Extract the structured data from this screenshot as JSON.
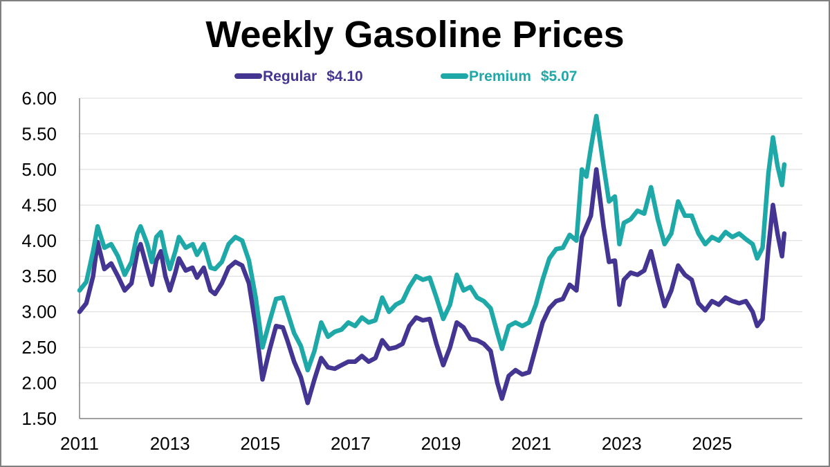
{
  "chart_data": {
    "type": "line",
    "title": "Weekly Gasoline Prices",
    "xlabel": "",
    "ylabel": "",
    "ylim": [
      1.5,
      6.0
    ],
    "xlim": [
      2011.0,
      2027.0
    ],
    "grid": true,
    "legend_position": "top-center",
    "y_ticks": [
      "6.00",
      "5.50",
      "5.00",
      "4.50",
      "4.00",
      "3.50",
      "3.00",
      "2.50",
      "2.00",
      "1.50"
    ],
    "x_ticks": [
      "2011",
      "2013",
      "2015",
      "2017",
      "2019",
      "2021",
      "2023",
      "2025"
    ],
    "series": [
      {
        "name": "Regular",
        "legend_value": "$4.10",
        "color": "#433591",
        "points": [
          [
            2011.0,
            3.0
          ],
          [
            2011.15,
            3.12
          ],
          [
            2011.3,
            3.5
          ],
          [
            2011.4,
            3.98
          ],
          [
            2011.55,
            3.6
          ],
          [
            2011.7,
            3.68
          ],
          [
            2011.85,
            3.5
          ],
          [
            2012.0,
            3.3
          ],
          [
            2012.15,
            3.4
          ],
          [
            2012.28,
            3.85
          ],
          [
            2012.35,
            3.95
          ],
          [
            2012.5,
            3.6
          ],
          [
            2012.6,
            3.38
          ],
          [
            2012.7,
            3.72
          ],
          [
            2012.8,
            3.85
          ],
          [
            2012.9,
            3.5
          ],
          [
            2013.0,
            3.3
          ],
          [
            2013.12,
            3.55
          ],
          [
            2013.2,
            3.75
          ],
          [
            2013.35,
            3.58
          ],
          [
            2013.5,
            3.62
          ],
          [
            2013.6,
            3.48
          ],
          [
            2013.75,
            3.62
          ],
          [
            2013.9,
            3.3
          ],
          [
            2014.0,
            3.25
          ],
          [
            2014.15,
            3.4
          ],
          [
            2014.3,
            3.62
          ],
          [
            2014.45,
            3.7
          ],
          [
            2014.6,
            3.65
          ],
          [
            2014.75,
            3.4
          ],
          [
            2014.9,
            2.8
          ],
          [
            2015.05,
            2.05
          ],
          [
            2015.2,
            2.45
          ],
          [
            2015.35,
            2.8
          ],
          [
            2015.5,
            2.78
          ],
          [
            2015.6,
            2.6
          ],
          [
            2015.75,
            2.3
          ],
          [
            2015.9,
            2.08
          ],
          [
            2016.05,
            1.72
          ],
          [
            2016.2,
            2.05
          ],
          [
            2016.35,
            2.35
          ],
          [
            2016.5,
            2.22
          ],
          [
            2016.65,
            2.2
          ],
          [
            2016.8,
            2.25
          ],
          [
            2016.95,
            2.3
          ],
          [
            2017.1,
            2.3
          ],
          [
            2017.25,
            2.38
          ],
          [
            2017.4,
            2.3
          ],
          [
            2017.55,
            2.35
          ],
          [
            2017.7,
            2.6
          ],
          [
            2017.85,
            2.48
          ],
          [
            2018.0,
            2.5
          ],
          [
            2018.15,
            2.55
          ],
          [
            2018.3,
            2.8
          ],
          [
            2018.45,
            2.92
          ],
          [
            2018.6,
            2.88
          ],
          [
            2018.75,
            2.9
          ],
          [
            2018.9,
            2.55
          ],
          [
            2019.05,
            2.25
          ],
          [
            2019.2,
            2.5
          ],
          [
            2019.35,
            2.85
          ],
          [
            2019.5,
            2.78
          ],
          [
            2019.65,
            2.62
          ],
          [
            2019.8,
            2.6
          ],
          [
            2019.95,
            2.55
          ],
          [
            2020.1,
            2.45
          ],
          [
            2020.25,
            2.0
          ],
          [
            2020.35,
            1.78
          ],
          [
            2020.5,
            2.1
          ],
          [
            2020.65,
            2.18
          ],
          [
            2020.8,
            2.12
          ],
          [
            2020.95,
            2.15
          ],
          [
            2021.1,
            2.5
          ],
          [
            2021.25,
            2.85
          ],
          [
            2021.4,
            3.05
          ],
          [
            2021.55,
            3.15
          ],
          [
            2021.7,
            3.18
          ],
          [
            2021.85,
            3.38
          ],
          [
            2022.0,
            3.3
          ],
          [
            2022.12,
            4.05
          ],
          [
            2022.22,
            4.2
          ],
          [
            2022.32,
            4.35
          ],
          [
            2022.44,
            5.0
          ],
          [
            2022.6,
            4.2
          ],
          [
            2022.72,
            3.7
          ],
          [
            2022.85,
            3.72
          ],
          [
            2022.95,
            3.1
          ],
          [
            2023.05,
            3.45
          ],
          [
            2023.2,
            3.55
          ],
          [
            2023.35,
            3.52
          ],
          [
            2023.5,
            3.58
          ],
          [
            2023.65,
            3.85
          ],
          [
            2023.8,
            3.45
          ],
          [
            2023.95,
            3.08
          ],
          [
            2024.1,
            3.3
          ],
          [
            2024.25,
            3.65
          ],
          [
            2024.4,
            3.52
          ],
          [
            2024.55,
            3.45
          ],
          [
            2024.7,
            3.12
          ],
          [
            2024.85,
            3.02
          ],
          [
            2025.0,
            3.15
          ],
          [
            2025.15,
            3.1
          ],
          [
            2025.3,
            3.2
          ],
          [
            2025.45,
            3.15
          ],
          [
            2025.6,
            3.12
          ],
          [
            2025.75,
            3.15
          ],
          [
            2025.9,
            3.0
          ],
          [
            2026.0,
            2.8
          ],
          [
            2026.12,
            2.9
          ],
          [
            2026.25,
            3.9
          ],
          [
            2026.35,
            4.5
          ],
          [
            2026.45,
            4.1
          ],
          [
            2026.55,
            3.78
          ],
          [
            2026.6,
            4.1
          ]
        ]
      },
      {
        "name": "Premium",
        "legend_value": "$5.07",
        "color": "#1EA8A8",
        "points": [
          [
            2011.0,
            3.3
          ],
          [
            2011.15,
            3.42
          ],
          [
            2011.3,
            3.85
          ],
          [
            2011.4,
            4.2
          ],
          [
            2011.55,
            3.9
          ],
          [
            2011.7,
            3.95
          ],
          [
            2011.85,
            3.78
          ],
          [
            2012.0,
            3.52
          ],
          [
            2012.15,
            3.7
          ],
          [
            2012.28,
            4.1
          ],
          [
            2012.35,
            4.2
          ],
          [
            2012.5,
            3.95
          ],
          [
            2012.6,
            3.7
          ],
          [
            2012.7,
            4.05
          ],
          [
            2012.8,
            4.12
          ],
          [
            2012.9,
            3.82
          ],
          [
            2013.0,
            3.6
          ],
          [
            2013.12,
            3.85
          ],
          [
            2013.2,
            4.05
          ],
          [
            2013.35,
            3.9
          ],
          [
            2013.5,
            3.95
          ],
          [
            2013.6,
            3.8
          ],
          [
            2013.75,
            3.95
          ],
          [
            2013.9,
            3.62
          ],
          [
            2014.0,
            3.6
          ],
          [
            2014.15,
            3.7
          ],
          [
            2014.3,
            3.95
          ],
          [
            2014.45,
            4.05
          ],
          [
            2014.6,
            4.0
          ],
          [
            2014.75,
            3.72
          ],
          [
            2014.9,
            3.2
          ],
          [
            2015.05,
            2.5
          ],
          [
            2015.2,
            2.85
          ],
          [
            2015.35,
            3.18
          ],
          [
            2015.5,
            3.2
          ],
          [
            2015.6,
            3.0
          ],
          [
            2015.75,
            2.7
          ],
          [
            2015.9,
            2.52
          ],
          [
            2016.05,
            2.18
          ],
          [
            2016.2,
            2.45
          ],
          [
            2016.35,
            2.85
          ],
          [
            2016.5,
            2.65
          ],
          [
            2016.65,
            2.72
          ],
          [
            2016.8,
            2.75
          ],
          [
            2016.95,
            2.85
          ],
          [
            2017.1,
            2.8
          ],
          [
            2017.25,
            2.92
          ],
          [
            2017.4,
            2.85
          ],
          [
            2017.55,
            2.88
          ],
          [
            2017.7,
            3.2
          ],
          [
            2017.85,
            3.0
          ],
          [
            2018.0,
            3.1
          ],
          [
            2018.15,
            3.15
          ],
          [
            2018.3,
            3.35
          ],
          [
            2018.45,
            3.5
          ],
          [
            2018.6,
            3.45
          ],
          [
            2018.75,
            3.48
          ],
          [
            2018.9,
            3.2
          ],
          [
            2019.05,
            2.9
          ],
          [
            2019.2,
            3.1
          ],
          [
            2019.35,
            3.52
          ],
          [
            2019.5,
            3.3
          ],
          [
            2019.65,
            3.35
          ],
          [
            2019.8,
            3.2
          ],
          [
            2019.95,
            3.15
          ],
          [
            2020.1,
            3.05
          ],
          [
            2020.25,
            2.7
          ],
          [
            2020.35,
            2.48
          ],
          [
            2020.5,
            2.8
          ],
          [
            2020.65,
            2.85
          ],
          [
            2020.8,
            2.8
          ],
          [
            2020.95,
            2.85
          ],
          [
            2021.1,
            3.1
          ],
          [
            2021.25,
            3.45
          ],
          [
            2021.4,
            3.75
          ],
          [
            2021.55,
            3.88
          ],
          [
            2021.7,
            3.9
          ],
          [
            2021.85,
            4.08
          ],
          [
            2022.0,
            4.0
          ],
          [
            2022.12,
            5.0
          ],
          [
            2022.22,
            4.9
          ],
          [
            2022.32,
            5.3
          ],
          [
            2022.44,
            5.75
          ],
          [
            2022.6,
            5.05
          ],
          [
            2022.72,
            4.55
          ],
          [
            2022.85,
            4.62
          ],
          [
            2022.95,
            3.95
          ],
          [
            2023.05,
            4.25
          ],
          [
            2023.2,
            4.3
          ],
          [
            2023.35,
            4.42
          ],
          [
            2023.5,
            4.38
          ],
          [
            2023.65,
            4.75
          ],
          [
            2023.8,
            4.3
          ],
          [
            2023.95,
            3.95
          ],
          [
            2024.1,
            4.1
          ],
          [
            2024.25,
            4.55
          ],
          [
            2024.4,
            4.35
          ],
          [
            2024.55,
            4.35
          ],
          [
            2024.7,
            4.1
          ],
          [
            2024.85,
            3.95
          ],
          [
            2025.0,
            4.05
          ],
          [
            2025.15,
            4.0
          ],
          [
            2025.3,
            4.12
          ],
          [
            2025.45,
            4.05
          ],
          [
            2025.6,
            4.1
          ],
          [
            2025.75,
            4.02
          ],
          [
            2025.9,
            3.95
          ],
          [
            2026.0,
            3.75
          ],
          [
            2026.12,
            3.9
          ],
          [
            2026.25,
            4.95
          ],
          [
            2026.35,
            5.45
          ],
          [
            2026.45,
            5.05
          ],
          [
            2026.55,
            4.78
          ],
          [
            2026.6,
            5.07
          ]
        ]
      }
    ]
  }
}
